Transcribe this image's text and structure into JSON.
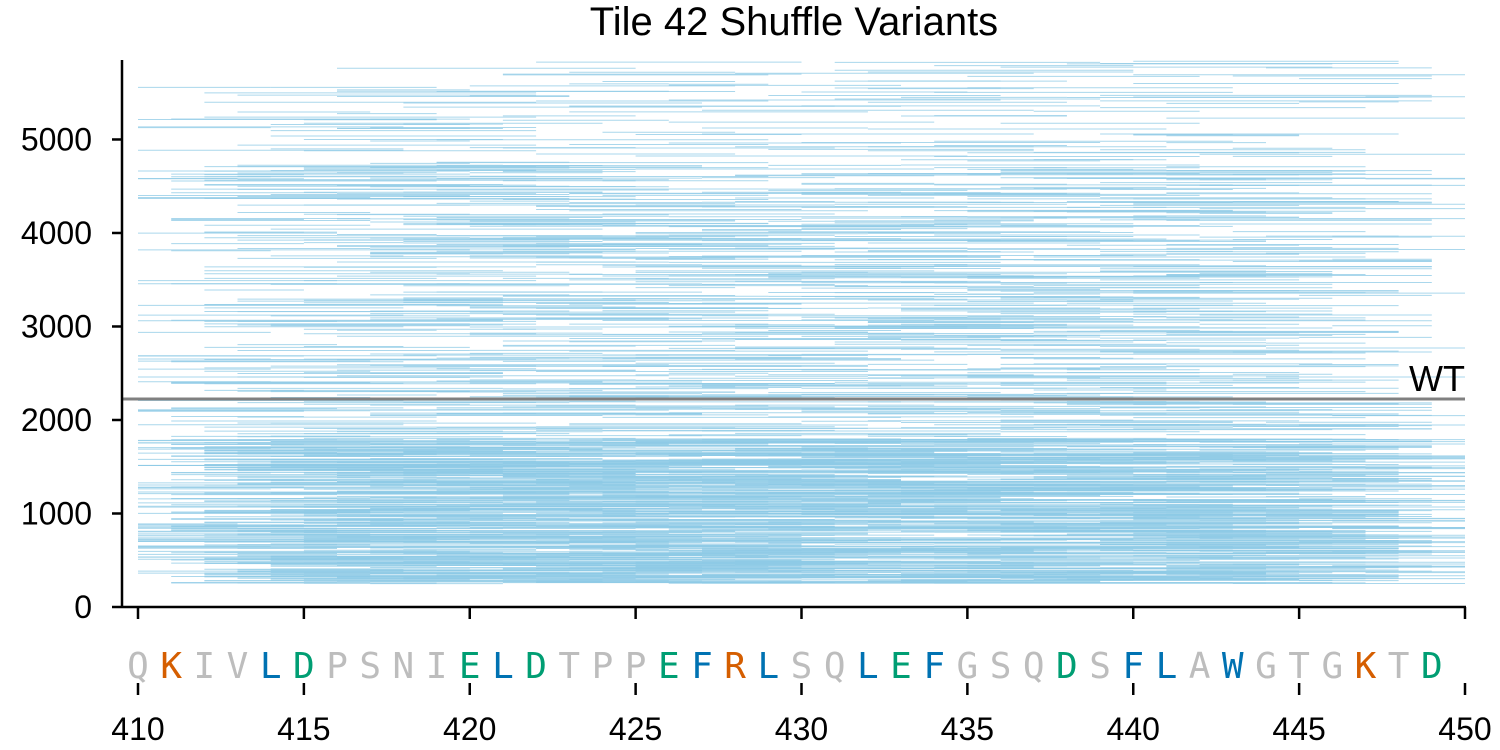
{
  "chart_data": {
    "type": "line",
    "title": "Tile 42 Shuffle Variants",
    "xlabel": "",
    "ylabel": "",
    "xlim": [
      410,
      450
    ],
    "ylim": [
      0,
      5850
    ],
    "grid": false,
    "x_ticks": [
      410,
      415,
      420,
      425,
      430,
      435,
      440,
      445,
      450
    ],
    "y_ticks": [
      0,
      1000,
      2000,
      3000,
      4000,
      5000
    ],
    "reference_line": {
      "label": "WT",
      "value": 2225,
      "color": "#808080"
    },
    "variant_color": "#8ecae6",
    "sequence": {
      "start": 410,
      "letters": [
        "Q",
        "K",
        "I",
        "V",
        "L",
        "D",
        "P",
        "S",
        "N",
        "I",
        "E",
        "L",
        "D",
        "T",
        "P",
        "P",
        "E",
        "F",
        "R",
        "L",
        "S",
        "Q",
        "L",
        "E",
        "F",
        "G",
        "S",
        "Q",
        "D",
        "S",
        "F",
        "L",
        "A",
        "W",
        "G",
        "T",
        "G",
        "K",
        "T",
        "D"
      ],
      "colors": {
        "nonpolar": "#bdbdbd",
        "basic": "#d55e00",
        "hydrophobic": "#0072b2",
        "acidic": "#009e73"
      },
      "classes": [
        "nonpolar",
        "basic",
        "nonpolar",
        "nonpolar",
        "hydrophobic",
        "acidic",
        "nonpolar",
        "nonpolar",
        "nonpolar",
        "nonpolar",
        "acidic",
        "hydrophobic",
        "acidic",
        "nonpolar",
        "nonpolar",
        "nonpolar",
        "acidic",
        "hydrophobic",
        "basic",
        "hydrophobic",
        "nonpolar",
        "nonpolar",
        "hydrophobic",
        "acidic",
        "hydrophobic",
        "nonpolar",
        "nonpolar",
        "nonpolar",
        "acidic",
        "nonpolar",
        "hydrophobic",
        "hydrophobic",
        "nonpolar",
        "hydrophobic",
        "nonpolar",
        "nonpolar",
        "nonpolar",
        "basic",
        "nonpolar",
        "acidic"
      ]
    },
    "variant_density": {
      "rows": 2600,
      "bands": [
        {
          "ymin": 250,
          "ymax": 1800,
          "weight": 0.62
        },
        {
          "ymin": 1800,
          "ymax": 4700,
          "weight": 0.33
        },
        {
          "ymin": 4700,
          "ymax": 5850,
          "weight": 0.05
        }
      ],
      "segment_length_range": [
        3,
        10
      ]
    }
  }
}
